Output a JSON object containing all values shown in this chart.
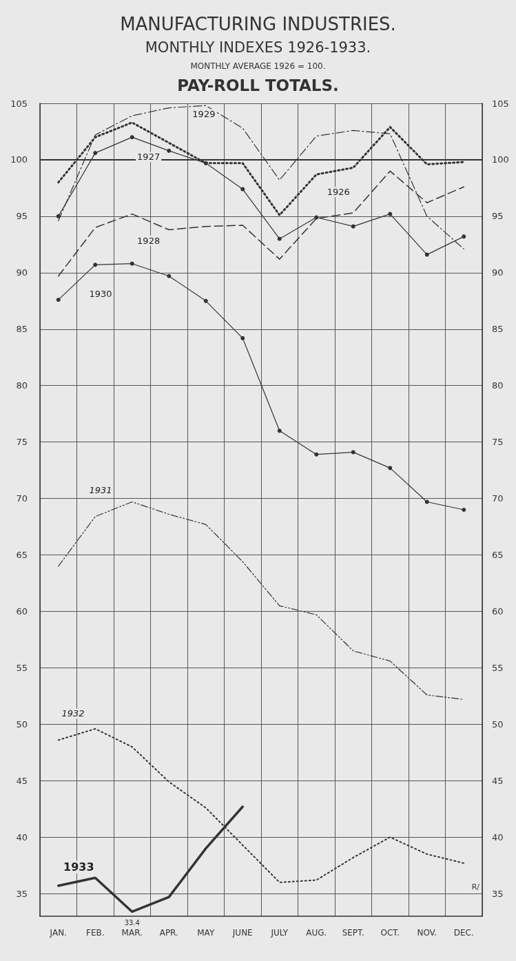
{
  "chart_data": {
    "type": "line",
    "title": "MANUFACTURING INDUSTRIES.",
    "subtitle": "MONTHLY INDEXES 1926-1933.",
    "annotations": [
      "MONTHLY AVERAGE 1926 = 100.",
      "PAY-ROLL TOTALS.",
      "R/"
    ],
    "categories": [
      "JAN.",
      "FEB.",
      "MAR.",
      "APR.",
      "MAY",
      "JUNE",
      "JULY",
      "AUG.",
      "SEPT.",
      "OCT.",
      "NOV.",
      "DEC."
    ],
    "ylim": [
      33,
      105
    ],
    "yticks": [
      35,
      40,
      45,
      50,
      55,
      60,
      65,
      70,
      75,
      80,
      85,
      90,
      95,
      100,
      105
    ],
    "y2lim": [
      33,
      105
    ],
    "y2ticks": [
      35,
      40,
      45,
      50,
      55,
      60,
      65,
      70,
      75,
      80,
      85,
      90,
      95,
      100,
      105
    ],
    "grid": true,
    "legend": false,
    "ref_lines": [
      {
        "axis": "y",
        "value": 100,
        "label": null
      }
    ],
    "series": [
      {
        "name": "1926",
        "color": "#333333",
        "line_style": "dotted",
        "marker": "none",
        "values": [
          98.0,
          102.0,
          103.3,
          101.5,
          99.7,
          99.7,
          95.1,
          98.7,
          99.3,
          102.9,
          99.6,
          99.8
        ]
      },
      {
        "name": "1927",
        "color": "#333333",
        "line_style": "solid",
        "marker": "circle",
        "values": [
          95.0,
          100.6,
          102.0,
          100.8,
          99.7,
          97.4,
          93.0,
          94.9,
          94.1,
          95.2,
          91.6,
          93.2
        ]
      },
      {
        "name": "1928",
        "color": "#333333",
        "line_style": "dashed",
        "marker": "none",
        "values": [
          89.7,
          94.0,
          95.2,
          93.8,
          94.1,
          94.2,
          91.2,
          94.8,
          95.3,
          99.0,
          96.2,
          97.6
        ]
      },
      {
        "name": "1929",
        "color": "#333333",
        "line_style": "dashdot",
        "marker": "none",
        "values": [
          94.6,
          102.2,
          103.9,
          104.6,
          104.8,
          102.8,
          98.2,
          102.1,
          102.6,
          102.3,
          95.0,
          92.1
        ]
      },
      {
        "name": "1930",
        "color": "#333333",
        "line_style": "solid",
        "marker": "circle",
        "values": [
          87.6,
          90.7,
          90.8,
          89.7,
          87.5,
          84.2,
          76.0,
          73.9,
          74.1,
          72.7,
          69.7,
          69.0
        ]
      },
      {
        "name": "1931",
        "color": "#333333",
        "line_style": "dashdotdot",
        "marker": "none",
        "values": [
          64.0,
          68.4,
          69.7,
          68.6,
          67.7,
          64.4,
          60.5,
          59.7,
          56.5,
          55.6,
          52.6,
          52.2
        ]
      },
      {
        "name": "1932",
        "color": "#333333",
        "line_style": "dotted",
        "marker": "none",
        "values": [
          48.6,
          49.6,
          48.0,
          44.9,
          42.6,
          39.3,
          36.0,
          36.2,
          38.2,
          40.0,
          38.5,
          37.7
        ]
      },
      {
        "name": "1933",
        "color": "#333333",
        "line_style": "solid",
        "marker": "none",
        "values": [
          35.7,
          36.4,
          33.4,
          34.7,
          39.0,
          42.7,
          null,
          null,
          null,
          null,
          null,
          null
        ],
        "value_labels": [
          null,
          null,
          "33.4",
          null,
          null,
          null,
          null,
          null,
          null,
          null,
          null,
          null
        ]
      }
    ]
  }
}
